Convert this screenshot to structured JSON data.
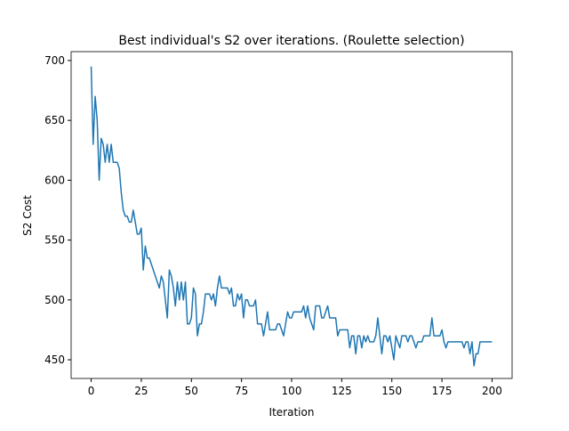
{
  "chart_data": {
    "type": "line",
    "title": "Best individual's S2 over iterations. (Roulette selection)",
    "xlabel": "Iteration",
    "ylabel": "S2 Cost",
    "color": "#1f77b4",
    "x": [
      0,
      1,
      2,
      3,
      4,
      5,
      6,
      7,
      8,
      9,
      10,
      11,
      12,
      13,
      14,
      15,
      16,
      17,
      18,
      19,
      20,
      21,
      22,
      23,
      24,
      25,
      26,
      27,
      28,
      29,
      30,
      31,
      32,
      33,
      34,
      35,
      36,
      37,
      38,
      39,
      40,
      41,
      42,
      43,
      44,
      45,
      46,
      47,
      48,
      49,
      50,
      51,
      52,
      53,
      54,
      55,
      56,
      57,
      58,
      59,
      60,
      61,
      62,
      63,
      64,
      65,
      66,
      67,
      68,
      69,
      70,
      71,
      72,
      73,
      74,
      75,
      76,
      77,
      78,
      79,
      80,
      81,
      82,
      83,
      84,
      85,
      86,
      87,
      88,
      89,
      90,
      91,
      92,
      93,
      94,
      95,
      96,
      97,
      98,
      99,
      100,
      101,
      102,
      103,
      104,
      105,
      106,
      107,
      108,
      109,
      110,
      111,
      112,
      113,
      114,
      115,
      116,
      117,
      118,
      119,
      120,
      121,
      122,
      123,
      124,
      125,
      126,
      127,
      128,
      129,
      130,
      131,
      132,
      133,
      134,
      135,
      136,
      137,
      138,
      139,
      140,
      141,
      142,
      143,
      144,
      145,
      146,
      147,
      148,
      149,
      150,
      151,
      152,
      153,
      154,
      155,
      156,
      157,
      158,
      159,
      160,
      161,
      162,
      163,
      164,
      165,
      166,
      167,
      168,
      169,
      170,
      171,
      172,
      173,
      174,
      175,
      176,
      177,
      178,
      179,
      180,
      181,
      182,
      183,
      184,
      185,
      186,
      187,
      188,
      189,
      190,
      191,
      192,
      193,
      194,
      195,
      196,
      197,
      198,
      199,
      200
    ],
    "values": [
      695,
      630,
      670,
      650,
      600,
      635,
      630,
      615,
      630,
      615,
      630,
      615,
      615,
      615,
      610,
      590,
      575,
      570,
      570,
      565,
      565,
      575,
      565,
      555,
      555,
      560,
      525,
      545,
      535,
      535,
      530,
      525,
      520,
      515,
      510,
      520,
      515,
      500,
      485,
      525,
      520,
      510,
      495,
      515,
      500,
      515,
      500,
      515,
      480,
      480,
      485,
      510,
      505,
      470,
      480,
      480,
      490,
      505,
      505,
      505,
      500,
      505,
      495,
      510,
      520,
      510,
      510,
      510,
      510,
      505,
      510,
      495,
      495,
      505,
      500,
      505,
      485,
      500,
      500,
      495,
      495,
      495,
      500,
      480,
      480,
      480,
      470,
      480,
      490,
      475,
      475,
      475,
      475,
      480,
      480,
      475,
      470,
      480,
      490,
      485,
      485,
      490,
      490,
      490,
      490,
      490,
      495,
      485,
      495,
      485,
      480,
      475,
      495,
      495,
      495,
      485,
      485,
      490,
      495,
      485,
      485,
      485,
      485,
      470,
      475,
      475,
      475,
      475,
      475,
      460,
      470,
      470,
      455,
      470,
      470,
      460,
      470,
      465,
      470,
      465,
      465,
      465,
      470,
      485,
      470,
      455,
      470,
      470,
      465,
      470,
      460,
      450,
      470,
      465,
      460,
      470,
      470,
      470,
      465,
      470,
      470,
      465,
      460,
      465,
      465,
      465,
      470,
      470,
      470,
      470,
      485,
      470,
      470,
      470,
      470,
      475,
      465,
      460,
      465,
      465,
      465,
      465,
      465,
      465,
      465,
      465,
      460,
      465,
      465,
      455,
      465,
      445,
      455,
      455,
      465,
      465,
      465,
      465,
      465,
      465,
      465
    ],
    "xlim": [
      -10,
      210
    ],
    "ylim": [
      434.4,
      707.4
    ],
    "xticks": [
      0,
      25,
      50,
      75,
      100,
      125,
      150,
      175,
      200
    ],
    "yticks": [
      450,
      500,
      550,
      600,
      650,
      700
    ]
  }
}
